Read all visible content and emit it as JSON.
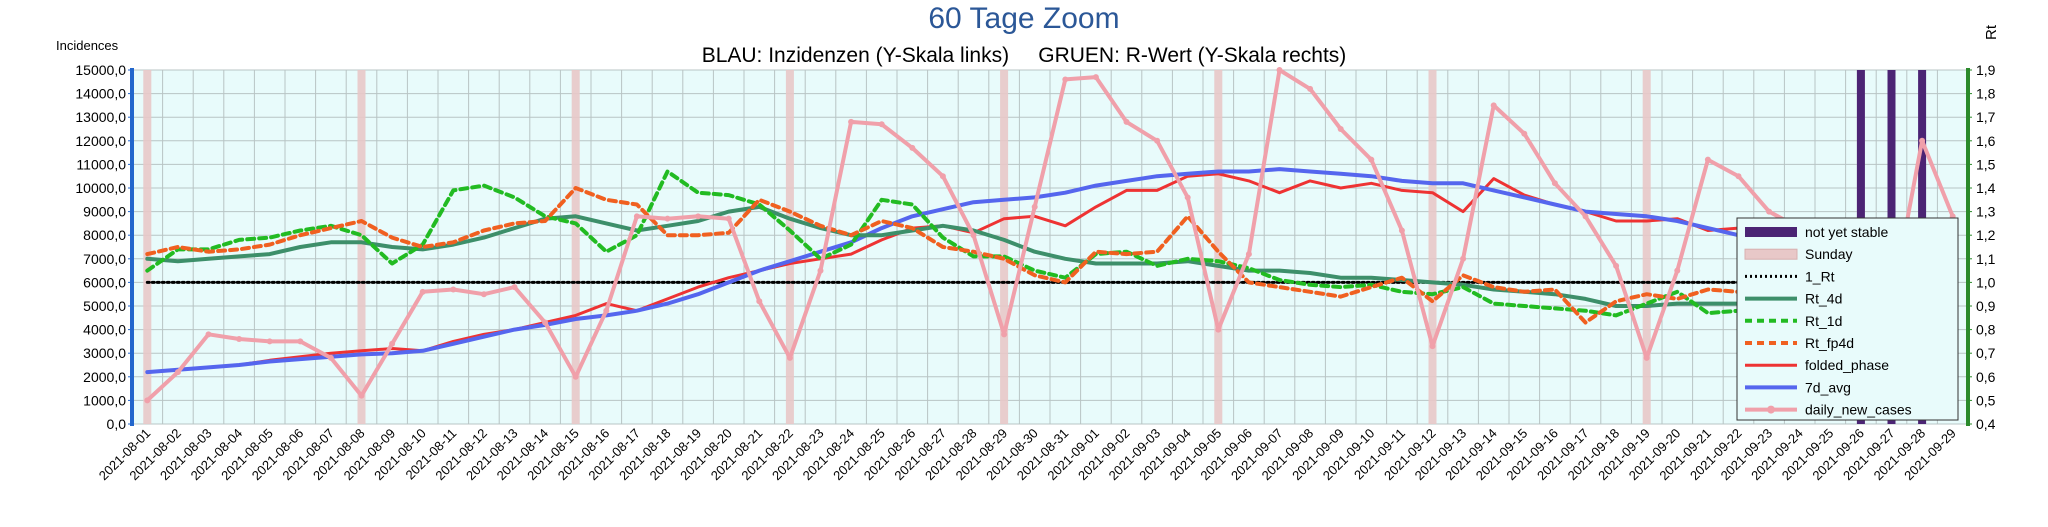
{
  "chart_data": {
    "type": "line",
    "title": "60 Tage Zoom",
    "subtitle": "BLAU: Inzidenzen (Y-Skala links)     GRUEN: R-Wert (Y-Skala rechts)",
    "ylabel_left": "Incidences",
    "ylabel_right": "Rt",
    "ylim_left": [
      0,
      15000
    ],
    "ylim_right": [
      0.4,
      1.9
    ],
    "yticks_left": [
      "0,0",
      "1000,0",
      "2000,0",
      "3000,0",
      "4000,0",
      "5000,0",
      "6000,0",
      "7000,0",
      "8000,0",
      "9000,0",
      "10000,0",
      "11000,0",
      "12000,0",
      "13000,0",
      "14000,0",
      "15000,0"
    ],
    "yticks_right": [
      "0,4",
      "0,5",
      "0,6",
      "0,7",
      "0,8",
      "0,9",
      "1,0",
      "1,1",
      "1,2",
      "1,3",
      "1,4",
      "1,5",
      "1,6",
      "1,7",
      "1,8",
      "1,9"
    ],
    "x": [
      "2021-08-01",
      "2021-08-02",
      "2021-08-03",
      "2021-08-04",
      "2021-08-05",
      "2021-08-06",
      "2021-08-07",
      "2021-08-08",
      "2021-08-09",
      "2021-08-10",
      "2021-08-11",
      "2021-08-12",
      "2021-08-13",
      "2021-08-14",
      "2021-08-15",
      "2021-08-16",
      "2021-08-17",
      "2021-08-18",
      "2021-08-19",
      "2021-08-20",
      "2021-08-21",
      "2021-08-22",
      "2021-08-23",
      "2021-08-24",
      "2021-08-25",
      "2021-08-26",
      "2021-08-27",
      "2021-08-28",
      "2021-08-29",
      "2021-08-30",
      "2021-08-31",
      "2021-09-01",
      "2021-09-02",
      "2021-09-03",
      "2021-09-04",
      "2021-09-05",
      "2021-09-06",
      "2021-09-07",
      "2021-09-08",
      "2021-09-09",
      "2021-09-10",
      "2021-09-11",
      "2021-09-12",
      "2021-09-13",
      "2021-09-14",
      "2021-09-15",
      "2021-09-16",
      "2021-09-17",
      "2021-09-18",
      "2021-09-19",
      "2021-09-20",
      "2021-09-21",
      "2021-09-22",
      "2021-09-23",
      "2021-09-24",
      "2021-09-25",
      "2021-09-26",
      "2021-09-27",
      "2021-09-28",
      "2021-09-29"
    ],
    "sunday_indices": [
      0,
      7,
      14,
      21,
      28,
      35,
      42,
      49,
      56
    ],
    "not_yet_stable_indices": [
      56,
      57,
      58
    ],
    "legend_placement": "right",
    "grid": true,
    "series": [
      {
        "name": "not yet stable",
        "type": "band",
        "color": "#4b2474"
      },
      {
        "name": "Sunday",
        "type": "band",
        "color": "#e8c8c8"
      },
      {
        "name": "1_Rt",
        "axis": "right",
        "color": "#000000",
        "dash": "dot",
        "values": [
          1.0,
          1.0,
          1.0,
          1.0,
          1.0,
          1.0,
          1.0,
          1.0,
          1.0,
          1.0,
          1.0,
          1.0,
          1.0,
          1.0,
          1.0,
          1.0,
          1.0,
          1.0,
          1.0,
          1.0,
          1.0,
          1.0,
          1.0,
          1.0,
          1.0,
          1.0,
          1.0,
          1.0,
          1.0,
          1.0,
          1.0,
          1.0,
          1.0,
          1.0,
          1.0,
          1.0,
          1.0,
          1.0,
          1.0,
          1.0,
          1.0,
          1.0,
          1.0,
          1.0,
          1.0,
          1.0,
          1.0,
          1.0,
          1.0,
          1.0,
          1.0,
          1.0,
          1.0,
          1.0,
          1.0,
          1.0,
          1.0,
          1.0,
          1.0,
          1.0
        ]
      },
      {
        "name": "Rt_4d",
        "axis": "right",
        "color": "#3d8f6a",
        "dash": "solid",
        "values": [
          1.1,
          1.09,
          1.1,
          1.11,
          1.12,
          1.15,
          1.17,
          1.17,
          1.15,
          1.14,
          1.16,
          1.19,
          1.23,
          1.27,
          1.28,
          1.25,
          1.22,
          1.24,
          1.26,
          1.3,
          1.32,
          1.27,
          1.23,
          1.2,
          1.2,
          1.22,
          1.24,
          1.22,
          1.18,
          1.13,
          1.1,
          1.08,
          1.08,
          1.08,
          1.09,
          1.07,
          1.05,
          1.05,
          1.04,
          1.02,
          1.02,
          1.01,
          1.0,
          0.99,
          0.97,
          0.96,
          0.95,
          0.93,
          0.9,
          0.9,
          0.91,
          0.91,
          0.91,
          0.9,
          0.89,
          0.91,
          0.93,
          0.95,
          1.0,
          0.97
        ]
      },
      {
        "name": "Rt_1d",
        "axis": "right",
        "color": "#22bb22",
        "dash": "dash",
        "values": [
          1.05,
          1.14,
          1.14,
          1.18,
          1.19,
          1.22,
          1.24,
          1.2,
          1.08,
          1.16,
          1.39,
          1.41,
          1.36,
          1.28,
          1.25,
          1.13,
          1.2,
          1.47,
          1.38,
          1.37,
          1.33,
          1.22,
          1.1,
          1.16,
          1.35,
          1.33,
          1.19,
          1.11,
          1.11,
          1.05,
          1.02,
          1.12,
          1.13,
          1.07,
          1.1,
          1.09,
          1.06,
          1.01,
          0.99,
          0.98,
          0.99,
          0.96,
          0.95,
          0.98,
          0.91,
          0.9,
          0.89,
          0.88,
          0.86,
          0.91,
          0.96,
          0.87,
          0.88,
          0.91,
          0.95,
          0.97,
          0.98,
          1.0,
          1.04,
          0.87
        ]
      },
      {
        "name": "Rt_fp4d",
        "axis": "right",
        "color": "#f06020",
        "dash": "dash",
        "values": [
          1.12,
          1.15,
          1.13,
          1.14,
          1.16,
          1.2,
          1.23,
          1.26,
          1.19,
          1.15,
          1.17,
          1.22,
          1.25,
          1.26,
          1.4,
          1.35,
          1.33,
          1.2,
          1.2,
          1.21,
          1.35,
          1.3,
          1.24,
          1.2,
          1.26,
          1.23,
          1.15,
          1.13,
          1.1,
          1.03,
          1.0,
          1.13,
          1.12,
          1.13,
          1.28,
          1.13,
          1.0,
          0.98,
          0.96,
          0.94,
          0.98,
          1.02,
          0.92,
          1.03,
          0.98,
          0.96,
          0.97,
          0.83,
          0.92,
          0.95,
          0.93,
          0.97,
          0.96,
          0.95,
          1.03,
          0.99,
          1.0,
          1.04,
          1.05,
          0.89
        ]
      },
      {
        "name": "folded_phase",
        "axis": "left",
        "color": "#ee3333",
        "dash": "solid",
        "values": [
          2200,
          2300,
          2400,
          2500,
          2700,
          2850,
          3000,
          3100,
          3200,
          3100,
          3500,
          3800,
          4000,
          4300,
          4600,
          5100,
          4800,
          5300,
          5800,
          6200,
          6500,
          6800,
          7000,
          7200,
          7800,
          8300,
          8400,
          8100,
          8700,
          8800,
          8400,
          9200,
          9900,
          9900,
          10500,
          10600,
          10300,
          9800,
          10300,
          10000,
          10200,
          9900,
          9800,
          9000,
          10400,
          9700,
          9300,
          9000,
          8600,
          8600,
          8700,
          8200,
          8300,
          8200,
          8300,
          7900,
          8100,
          8500,
          8500,
          6900
        ]
      },
      {
        "name": "7d_avg",
        "axis": "left",
        "color": "#5566ee",
        "dash": "solid",
        "values": [
          2200,
          2300,
          2400,
          2500,
          2650,
          2750,
          2850,
          2950,
          3000,
          3100,
          3400,
          3700,
          4000,
          4200,
          4450,
          4600,
          4800,
          5100,
          5500,
          6000,
          6500,
          6900,
          7300,
          7700,
          8300,
          8800,
          9100,
          9400,
          9500,
          9600,
          9800,
          10100,
          10300,
          10500,
          10600,
          10700,
          10700,
          10800,
          10700,
          10600,
          10500,
          10300,
          10200,
          10200,
          9900,
          9600,
          9300,
          9000,
          8900,
          8800,
          8600,
          8300,
          8000,
          7800,
          7700,
          7600,
          7600,
          7700,
          7800,
          7500
        ]
      },
      {
        "name": "daily_new_cases",
        "axis": "left",
        "color": "#f0a0aa",
        "dash": "solid",
        "marker": "circle",
        "values": [
          1000,
          2200,
          3800,
          3600,
          3500,
          3500,
          2800,
          1200,
          3400,
          5600,
          5700,
          5500,
          5800,
          4300,
          2000,
          4800,
          8800,
          8700,
          8800,
          8700,
          5200,
          2800,
          6500,
          12800,
          12700,
          11700,
          10500,
          8000,
          3800,
          9200,
          14600,
          14700,
          12800,
          12000,
          9600,
          4000,
          7200,
          15000,
          14200,
          12500,
          11200,
          8200,
          3300,
          7000,
          13500,
          12300,
          10200,
          8800,
          6700,
          2800,
          6500,
          11200,
          10500,
          9000,
          8300,
          6400,
          2700,
          5100,
          12000,
          8800
        ]
      }
    ]
  }
}
